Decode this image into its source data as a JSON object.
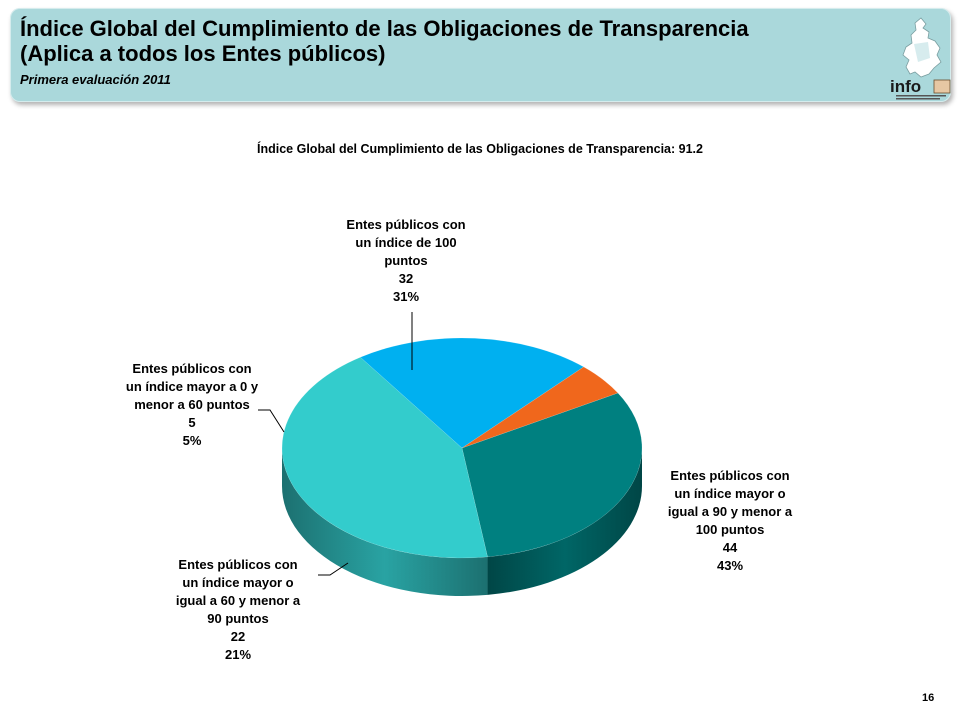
{
  "header": {
    "title_line1": "Índice Global del Cumplimiento de las Obligaciones de Transparencia",
    "title_line2": "(Aplica a todos los Entes públicos)",
    "subtitle": "Primera evaluación 2011",
    "logo_text": "info"
  },
  "colors": {
    "banner": "#aad8db",
    "slice_100": "#008080",
    "slice_90_100": "#33cccc",
    "slice_60_90": "#00b0f0",
    "slice_0_60": "#f0671c"
  },
  "chart_data": {
    "type": "pie",
    "title": "Índice Global del Cumplimiento de las Obligaciones de Transparencia: 91.2",
    "slices": [
      {
        "name": "Entes públicos con un índice de 100 puntos",
        "value": 32,
        "percent": "31%"
      },
      {
        "name": "Entes públicos con un índice mayor o igual a 90 y menor a 100 puntos",
        "value": 44,
        "percent": "43%"
      },
      {
        "name": "Entes públicos con un índice mayor o igual a 60 y menor a 90 puntos",
        "value": 22,
        "percent": "21%"
      },
      {
        "name": "Entes públicos con un índice mayor a 0 y menor a 60 puntos",
        "value": 5,
        "percent": "5%"
      }
    ],
    "labels": [
      {
        "lines": [
          "Entes públicos con",
          "un índice de 100",
          "puntos"
        ],
        "value": "32",
        "percent": "31%"
      },
      {
        "lines": [
          "Entes públicos con",
          "un índice mayor o",
          "igual a 90 y menor a",
          "100 puntos"
        ],
        "value": "44",
        "percent": "43%"
      },
      {
        "lines": [
          "Entes públicos con",
          "un índice mayor o",
          "igual a 60 y menor a",
          "90 puntos"
        ],
        "value": "22",
        "percent": "21%"
      },
      {
        "lines": [
          "Entes públicos con",
          "un índice mayor a 0 y",
          "menor a 60 puntos"
        ],
        "value": "5",
        "percent": "5%"
      }
    ]
  },
  "page_number": "16"
}
